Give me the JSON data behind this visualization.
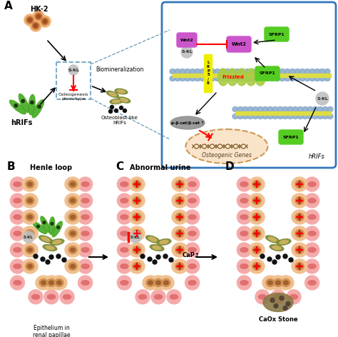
{
  "bg_color": "#ffffff",
  "panel_A_label": "A",
  "panel_B_label": "B",
  "panel_C_label": "C",
  "panel_D_label": "D",
  "hk2_label": "HK-2",
  "hrifs_label": "hRIFs",
  "biomineralization_label": "Biomineralization",
  "osteoblast_label": "Osteoblast-like\nhRIFs",
  "osteogenesis_label": "Osteogenesis\nphenotype",
  "sKL_color": "#c0c0c0",
  "wnt2_color": "#cc55cc",
  "sfrp1_color": "#55cc22",
  "frizzled_color": "#cccc33",
  "lrp_color": "#eeee00",
  "membrane_blue": "#88aacc",
  "membrane_yellow": "#dddd44",
  "osteogenic_fill": "#f8dfc0",
  "hk2_cell_outer": "#f0b070",
  "hk2_cell_mid": "#c87840",
  "hk2_cell_nucleus": "#a05020",
  "epithelial_outer": "#f0c090",
  "epithelial_mid": "#d09050",
  "epithelial_nucleus": "#a06030",
  "pink_outer": "#f5aaaa",
  "pink_mid": "#e07070",
  "henle_label": "Henle loop",
  "abnormal_label": "Abnormal urine",
  "epithelium_label": "Epithelium in\nrenal papillae",
  "cap_label": "CaP↑",
  "caox_label": "CaOx Stone",
  "blue_box_color": "#3377bb",
  "grass_green": "#44aa22",
  "olive_green": "#7a8a30",
  "tan_inner": "#c8b060",
  "stone_color": "#887744"
}
